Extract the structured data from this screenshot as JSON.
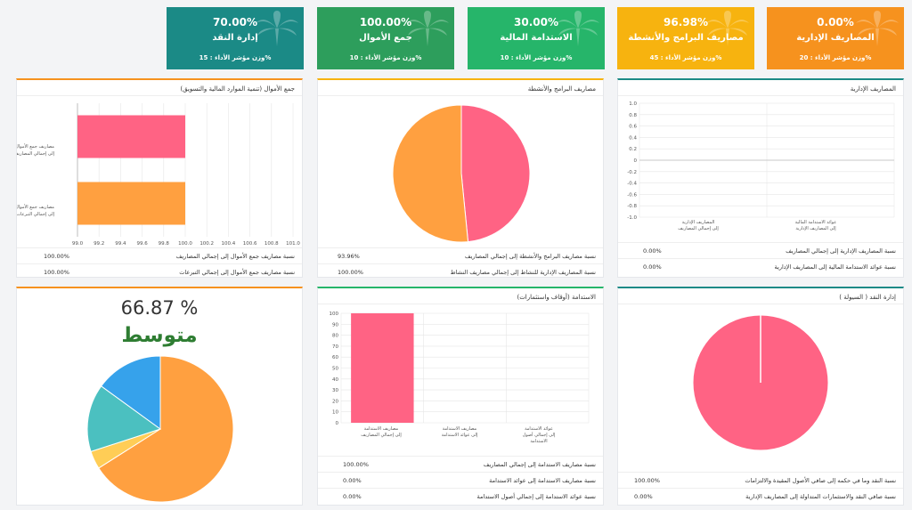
{
  "kpis": [
    {
      "value": "0.00%",
      "title": "المصاريف الإدارية",
      "weight": "وزن مؤشر الأداء : 20%",
      "color": "#f6921e"
    },
    {
      "value": "96.98%",
      "title": "مصاريف البرامج والأنشطة",
      "weight": "وزن مؤشر الأداء : 45%",
      "color": "#f7b30f"
    },
    {
      "value": "30.00%",
      "title": "الاستدامة المالية",
      "weight": "وزن مؤشر الأداء : 10%",
      "color": "#26b56a"
    },
    {
      "value": "100.00%",
      "title": "جمع الأموال",
      "weight": "وزن مؤشر الأداء : 10%",
      "color": "#2d9e5c"
    },
    {
      "value": "70.00%",
      "title": "إدارة النقد",
      "weight": "وزن مؤشر الأداء : 15%",
      "color": "#1b8a86"
    }
  ],
  "fundraising": {
    "title": "جمع الأموال (تنمية الموارد المالية والتسويق)",
    "rows": [
      {
        "label": "نسبة مصاريف جمع الأموال إلى إجمالي المصاريف",
        "value": "100.00%"
      },
      {
        "label": "نسبة مصاريف جمع الأموال إلى إجمالي التبرعات",
        "value": "100.00%"
      }
    ]
  },
  "programs": {
    "title": "مصاريف البرامج والأنشطة",
    "rows": [
      {
        "label": "نسبة مصاريف البرامج والأنشطة إلى إجمالي المصاريف",
        "value": "93.96%"
      },
      {
        "label": "نسبة المصاريف الإدارية للنشاط إلى إجمالي مصاريف النشاط",
        "value": "100.00%"
      }
    ]
  },
  "admin": {
    "title": "المصاريف الإدارية",
    "rows": [
      {
        "label": "نسبة المصاريف الإدارية إلى إجمالي المصاريف",
        "value": "0.00%"
      },
      {
        "label": "نسبة عوائد الاستدامة المالية إلى المصاريف الإدارية",
        "value": "0.00%"
      }
    ]
  },
  "overall": {
    "percent": "66.87 %",
    "level": "متوسط"
  },
  "sustain": {
    "title": "الاستدامة (أوقاف واستثمارات)",
    "rows": [
      {
        "label": "نسبة مصاريف الاستدامة إلى إجمالي المصاريف",
        "value": "100.00%"
      },
      {
        "label": "نسبة مصاريف الاستدامة إلى عوائد الاستدامة",
        "value": "0.00%"
      },
      {
        "label": "نسبة عوائد الاستدامة إلى إجمالي أصول الاستدامة",
        "value": "0.00%"
      }
    ]
  },
  "cash": {
    "title": "إدارة النقد ( السيولة )",
    "rows": [
      {
        "label": "نسبة النقد وما في حكمه إلى صافي الأصول المقيدة والالتزامات",
        "value": "100.00%"
      },
      {
        "label": "نسبة صافي النقد والاستثمارات المتداولة إلى المصاريف الإدارية",
        "value": "0.00%"
      }
    ]
  },
  "chart_data": [
    {
      "type": "bar",
      "orientation": "horizontal",
      "categories": [
        "مصاريف جمع الأموال إلى إجمالي المصاريف",
        "مصاريف جمع الأموال إلى إجمالي التبرعات"
      ],
      "values": [
        100,
        100
      ],
      "colors": [
        "#ff6384",
        "#ffa040"
      ],
      "xlim": [
        99,
        101
      ],
      "xticks": [
        "99.0",
        "99.2",
        "99.4",
        "99.6",
        "99.8",
        "100.0",
        "100.2",
        "100.4",
        "100.6",
        "100.8",
        "101.0"
      ],
      "grid": true
    },
    {
      "type": "pie",
      "values": [
        93.96,
        100
      ],
      "colors": [
        "#ff6384",
        "#ffa040"
      ]
    },
    {
      "type": "line",
      "categories": [
        "المصاريف الإدارية إلى إجمالي المصاريف",
        "عوائد الاستدامة المالية إلى المصاريف الإدارية"
      ],
      "values": [
        0,
        0
      ],
      "ylim": [
        -1,
        1
      ],
      "yticks": [
        "1.0",
        "0.8",
        "0.6",
        "0.4",
        "0.2",
        "0",
        "-0.2",
        "-0.4",
        "-0.6",
        "-0.8",
        "-1.0"
      ],
      "grid": true
    },
    {
      "type": "pie",
      "values": [
        66,
        4,
        15,
        15
      ],
      "colors": [
        "#ffa040",
        "#ffcd56",
        "#4bc0c0",
        "#36a2eb"
      ]
    },
    {
      "type": "bar",
      "categories": [
        "مصاريف الاستدامة إلى إجمالي المصاريف",
        "مصاريف الاستدامة إلى عوائد الاستدامة",
        "عوائد الاستدامة إلى إجمالي أصول الاستدامة"
      ],
      "values": [
        100,
        0,
        0
      ],
      "colors": [
        "#ff6384",
        "#ff6384",
        "#ff6384"
      ],
      "ylim": [
        0,
        100
      ],
      "yticks": [
        "100",
        "90",
        "80",
        "70",
        "60",
        "50",
        "40",
        "30",
        "20",
        "10",
        "0"
      ],
      "grid": true
    },
    {
      "type": "pie",
      "values": [
        100,
        0
      ],
      "colors": [
        "#ff6384",
        "#ffa040"
      ]
    }
  ]
}
